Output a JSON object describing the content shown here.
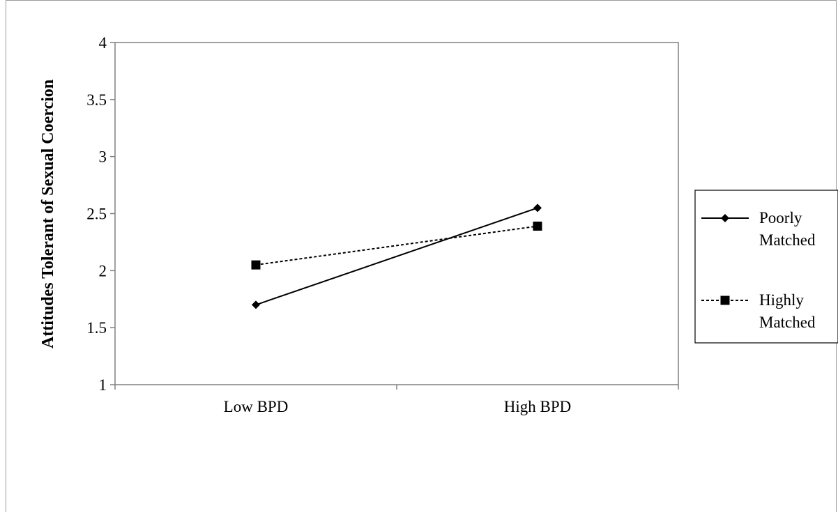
{
  "chart_data": {
    "type": "line",
    "title": "",
    "xlabel": "",
    "ylabel": "Attitudes Tolerant of Sexual Coercion",
    "categories": [
      "Low BPD",
      "High BPD"
    ],
    "ylim": [
      1,
      4
    ],
    "yticks": [
      1,
      1.5,
      2,
      2.5,
      3,
      3.5,
      4
    ],
    "ytick_labels": [
      "1",
      "1.5",
      "2",
      "2.5",
      "3",
      "3.5",
      "4"
    ],
    "grid": false,
    "legend_position": "right",
    "series": [
      {
        "name": "Poorly Matched",
        "name_lines": [
          "Poorly",
          "Matched"
        ],
        "values": [
          1.7,
          2.55
        ],
        "line_style": "solid",
        "marker": "diamond",
        "color": "#000000"
      },
      {
        "name": "Highly Matched",
        "name_lines": [
          "Highly",
          "Matched"
        ],
        "values": [
          2.05,
          2.39
        ],
        "line_style": "dashed",
        "marker": "square",
        "color": "#000000"
      }
    ]
  }
}
